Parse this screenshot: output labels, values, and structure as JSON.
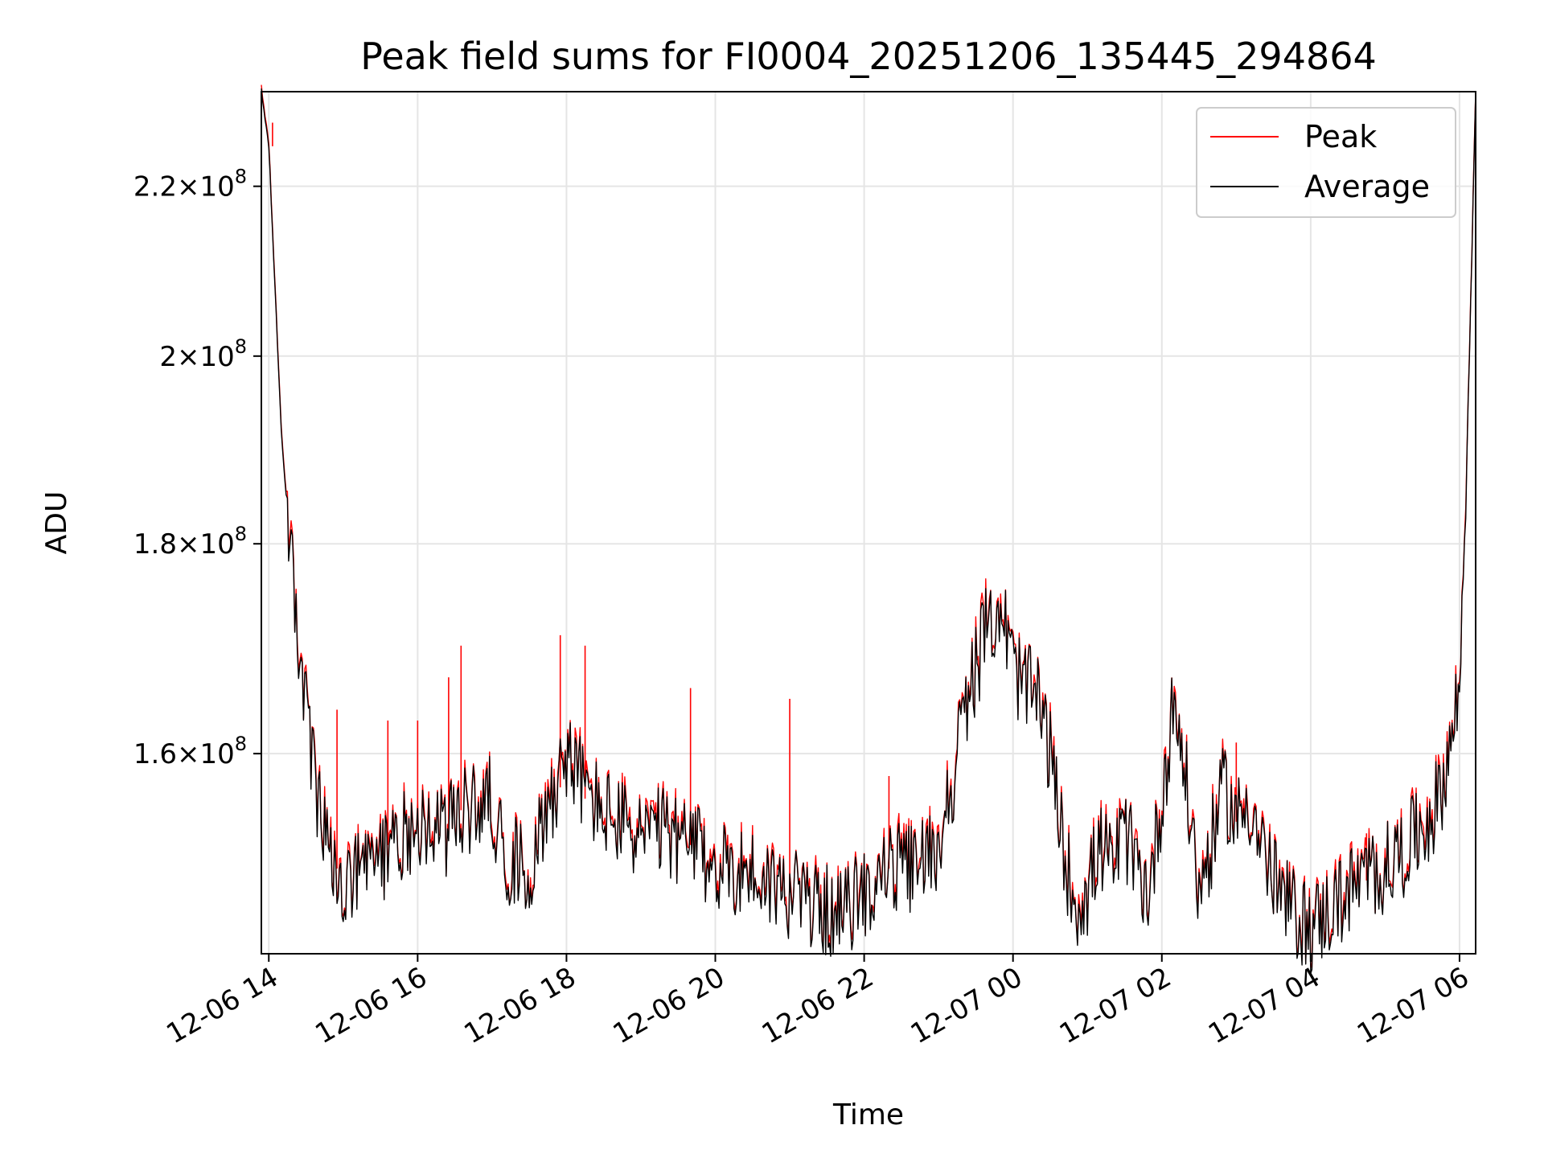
{
  "chart_data": {
    "type": "line",
    "title": "Peak field sums for FI0004_20251206_135445_294864",
    "xlabel": "Time",
    "ylabel": "ADU",
    "y_scale": "log",
    "grid": true,
    "legend_position": "top-right",
    "xlim": [
      "2025-12-06 13:54",
      "2025-12-07 06:13"
    ],
    "ylim": [
      143000000,
      232000000
    ],
    "x_tick_labels": [
      "12-06 14",
      "12-06 16",
      "12-06 18",
      "12-06 20",
      "12-06 22",
      "12-07 00",
      "12-07 02",
      "12-07 04",
      "12-07 06"
    ],
    "x_ticks": [
      "2025-12-06 14:00",
      "2025-12-06 16:00",
      "2025-12-06 18:00",
      "2025-12-06 20:00",
      "2025-12-06 22:00",
      "2025-12-07 00:00",
      "2025-12-07 02:00",
      "2025-12-07 04:00",
      "2025-12-07 06:00"
    ],
    "y_ticks": [
      {
        "value": 160000000,
        "mantissa": "1.6",
        "exponent": "8"
      },
      {
        "value": 180000000,
        "mantissa": "1.8",
        "exponent": "8"
      },
      {
        "value": 200000000,
        "mantissa": "2",
        "exponent": "8"
      },
      {
        "value": 220000000,
        "mantissa": "2.2",
        "exponent": "8"
      }
    ],
    "times_suffix": "×10",
    "series": [
      {
        "name": "Peak",
        "color": "#ff0000"
      },
      {
        "name": "Average",
        "color": "#000000"
      }
    ],
    "x": [
      "2025-12-06 13:54",
      "2025-12-06 14:00",
      "2025-12-06 14:10",
      "2025-12-06 14:20",
      "2025-12-06 14:30",
      "2025-12-06 14:40",
      "2025-12-06 14:50",
      "2025-12-06 15:00",
      "2025-12-06 15:20",
      "2025-12-06 15:40",
      "2025-12-06 16:00",
      "2025-12-06 16:20",
      "2025-12-06 16:40",
      "2025-12-06 17:00",
      "2025-12-06 17:10",
      "2025-12-06 17:30",
      "2025-12-06 17:50",
      "2025-12-06 18:00",
      "2025-12-06 18:20",
      "2025-12-06 18:40",
      "2025-12-06 19:00",
      "2025-12-06 19:20",
      "2025-12-06 19:40",
      "2025-12-06 20:00",
      "2025-12-06 20:20",
      "2025-12-06 20:40",
      "2025-12-06 21:00",
      "2025-12-06 21:20",
      "2025-12-06 21:40",
      "2025-12-06 22:00",
      "2025-12-06 22:20",
      "2025-12-06 22:40",
      "2025-12-06 23:00",
      "2025-12-06 23:10",
      "2025-12-06 23:20",
      "2025-12-06 23:30",
      "2025-12-06 23:40",
      "2025-12-06 23:50",
      "2025-12-07 00:00",
      "2025-12-07 00:10",
      "2025-12-07 00:20",
      "2025-12-07 00:30",
      "2025-12-07 00:40",
      "2025-12-07 00:50",
      "2025-12-07 01:00",
      "2025-12-07 01:10",
      "2025-12-07 01:20",
      "2025-12-07 01:30",
      "2025-12-07 01:40",
      "2025-12-07 01:50",
      "2025-12-07 02:00",
      "2025-12-07 02:10",
      "2025-12-07 02:20",
      "2025-12-07 02:30",
      "2025-12-07 02:40",
      "2025-12-07 02:50",
      "2025-12-07 03:00",
      "2025-12-07 03:10",
      "2025-12-07 03:20",
      "2025-12-07 03:30",
      "2025-12-07 03:40",
      "2025-12-07 03:50",
      "2025-12-07 04:00",
      "2025-12-07 04:20",
      "2025-12-07 04:40",
      "2025-12-07 05:00",
      "2025-12-07 05:20",
      "2025-12-07 05:40",
      "2025-12-07 05:50",
      "2025-12-07 06:00",
      "2025-12-07 06:05",
      "2025-12-07 06:10",
      "2025-12-07 06:13"
    ],
    "average_values": [
      232000000,
      225000000,
      192000000,
      175000000,
      164000000,
      155000000,
      150000000,
      148000000,
      150000000,
      152000000,
      154000000,
      153000000,
      155000000,
      156000000,
      151000000,
      150000000,
      157000000,
      160000000,
      156000000,
      154000000,
      153000000,
      153000000,
      152000000,
      150000000,
      150000000,
      149000000,
      148000000,
      147000000,
      146000000,
      148000000,
      150000000,
      150000000,
      152000000,
      157000000,
      163000000,
      168000000,
      172000000,
      174000000,
      168000000,
      166000000,
      165000000,
      160000000,
      152000000,
      147000000,
      148000000,
      152000000,
      150000000,
      153000000,
      150000000,
      148000000,
      156000000,
      165000000,
      157000000,
      148000000,
      152000000,
      157000000,
      154000000,
      156000000,
      152000000,
      149000000,
      147000000,
      146000000,
      145000000,
      147000000,
      149000000,
      150000000,
      152000000,
      155000000,
      159000000,
      166000000,
      184000000,
      212000000,
      232000000
    ],
    "peak_spikes": [
      {
        "x": "2025-12-06 14:03",
        "y": 228000000
      },
      {
        "x": "2025-12-06 14:55",
        "y": 164000000
      },
      {
        "x": "2025-12-06 15:36",
        "y": 163000000
      },
      {
        "x": "2025-12-06 16:00",
        "y": 163000000
      },
      {
        "x": "2025-12-06 16:25",
        "y": 167000000
      },
      {
        "x": "2025-12-06 16:35",
        "y": 170000000
      },
      {
        "x": "2025-12-06 17:55",
        "y": 171000000
      },
      {
        "x": "2025-12-06 18:15",
        "y": 170000000
      },
      {
        "x": "2025-12-06 19:40",
        "y": 166000000
      },
      {
        "x": "2025-12-06 21:00",
        "y": 165000000
      },
      {
        "x": "2025-12-06 22:20",
        "y": 158000000
      },
      {
        "x": "2025-12-07 03:00",
        "y": 161000000
      },
      {
        "x": "2025-12-07 04:45",
        "y": 153000000
      }
    ]
  }
}
